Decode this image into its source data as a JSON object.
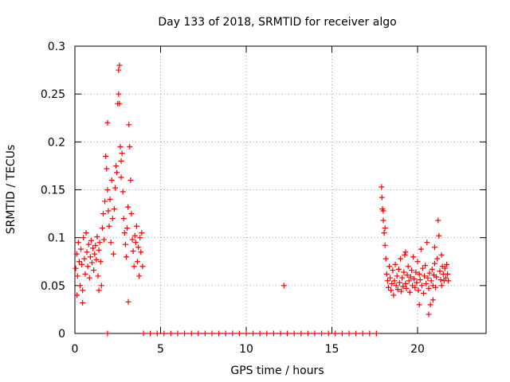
{
  "chart_data": {
    "type": "scatter",
    "title": "Day 133 of 2018, SRMTID for receiver algo",
    "xlabel": "GPS time / hours",
    "ylabel": "SRMTID / TECUs",
    "xlim": [
      0,
      24
    ],
    "ylim": [
      0,
      0.3
    ],
    "grid": true,
    "marker": "+",
    "color": "#ff0000",
    "x_ticks": [
      0,
      5,
      10,
      15,
      20
    ],
    "x_tick_labels": [
      "0",
      "5",
      "10",
      "15",
      "20"
    ],
    "y_ticks": [
      0,
      0.05,
      0.1,
      0.15,
      0.2,
      0.25,
      0.3
    ],
    "y_tick_labels": [
      "0",
      "0.05",
      "0.1",
      "0.15",
      "0.2",
      "0.25",
      "0.3"
    ],
    "series": [
      {
        "name": "SRMTID",
        "points": [
          [
            0.05,
            0.068
          ],
          [
            0.1,
            0.083
          ],
          [
            0.15,
            0.06
          ],
          [
            0.2,
            0.095
          ],
          [
            0.25,
            0.075
          ],
          [
            0.3,
            0.05
          ],
          [
            0.35,
            0.088
          ],
          [
            0.4,
            0.072
          ],
          [
            0.45,
            0.045
          ],
          [
            0.5,
            0.1
          ],
          [
            0.55,
            0.078
          ],
          [
            0.6,
            0.062
          ],
          [
            0.65,
            0.105
          ],
          [
            0.7,
            0.085
          ],
          [
            0.75,
            0.07
          ],
          [
            0.8,
            0.093
          ],
          [
            0.85,
            0.058
          ],
          [
            0.9,
            0.08
          ],
          [
            0.95,
            0.097
          ],
          [
            1.0,
            0.074
          ],
          [
            1.05,
            0.089
          ],
          [
            1.1,
            0.066
          ],
          [
            1.15,
            0.083
          ],
          [
            1.2,
            0.092
          ],
          [
            1.25,
            0.077
          ],
          [
            1.3,
            0.101
          ],
          [
            1.35,
            0.06
          ],
          [
            1.4,
            0.087
          ],
          [
            1.45,
            0.095
          ],
          [
            1.5,
            0.075
          ],
          [
            1.55,
            0.05
          ],
          [
            1.6,
            0.11
          ],
          [
            1.65,
            0.125
          ],
          [
            1.7,
            0.098
          ],
          [
            1.75,
            0.138
          ],
          [
            1.8,
            0.185
          ],
          [
            1.85,
            0.172
          ],
          [
            1.9,
            0.15
          ],
          [
            1.95,
            0.128
          ],
          [
            2.0,
            0.112
          ],
          [
            2.05,
            0.14
          ],
          [
            2.1,
            0.095
          ],
          [
            2.15,
            0.16
          ],
          [
            2.2,
            0.12
          ],
          [
            2.25,
            0.083
          ],
          [
            2.3,
            0.13
          ],
          [
            2.35,
            0.152
          ],
          [
            2.4,
            0.175
          ],
          [
            2.45,
            0.168
          ],
          [
            2.5,
            0.24
          ],
          [
            2.55,
            0.275
          ],
          [
            2.6,
            0.28
          ],
          [
            2.65,
            0.195
          ],
          [
            2.7,
            0.163
          ],
          [
            2.75,
            0.188
          ],
          [
            2.8,
            0.148
          ],
          [
            2.85,
            0.12
          ],
          [
            2.9,
            0.105
          ],
          [
            2.95,
            0.093
          ],
          [
            3.0,
            0.08
          ],
          [
            3.05,
            0.11
          ],
          [
            3.1,
            0.132
          ],
          [
            3.15,
            0.218
          ],
          [
            3.2,
            0.195
          ],
          [
            3.25,
            0.16
          ],
          [
            3.3,
            0.125
          ],
          [
            3.35,
            0.098
          ],
          [
            3.4,
            0.086
          ],
          [
            3.45,
            0.07
          ],
          [
            3.5,
            0.102
          ],
          [
            3.55,
            0.095
          ],
          [
            3.6,
            0.112
          ],
          [
            3.65,
            0.075
          ],
          [
            3.7,
            0.09
          ],
          [
            3.75,
            0.06
          ],
          [
            3.8,
            0.1
          ],
          [
            3.85,
            0.085
          ],
          [
            3.9,
            0.105
          ],
          [
            3.95,
            0.07
          ],
          [
            3.12,
            0.033
          ],
          [
            1.9,
            0.22
          ],
          [
            2.55,
            0.25
          ],
          [
            2.6,
            0.24
          ],
          [
            2.7,
            0.18
          ],
          [
            0.45,
            0.032
          ],
          [
            1.4,
            0.045
          ],
          [
            0.12,
            0.04
          ],
          [
            1.9,
            0.0
          ],
          [
            4.0,
            0.0
          ],
          [
            4.4,
            0.0
          ],
          [
            4.8,
            0.0
          ],
          [
            5.2,
            0.0
          ],
          [
            5.6,
            0.0
          ],
          [
            6.0,
            0.0
          ],
          [
            6.4,
            0.0
          ],
          [
            6.8,
            0.0
          ],
          [
            7.2,
            0.0
          ],
          [
            7.6,
            0.0
          ],
          [
            8.0,
            0.0
          ],
          [
            8.4,
            0.0
          ],
          [
            8.8,
            0.0
          ],
          [
            9.2,
            0.0
          ],
          [
            9.6,
            0.0
          ],
          [
            10.0,
            0.0
          ],
          [
            10.4,
            0.0
          ],
          [
            10.8,
            0.0
          ],
          [
            11.2,
            0.0
          ],
          [
            11.6,
            0.0
          ],
          [
            12.0,
            0.0
          ],
          [
            12.4,
            0.0
          ],
          [
            12.8,
            0.0
          ],
          [
            13.2,
            0.0
          ],
          [
            13.6,
            0.0
          ],
          [
            14.0,
            0.0
          ],
          [
            14.4,
            0.0
          ],
          [
            14.8,
            0.0
          ],
          [
            15.2,
            0.0
          ],
          [
            15.6,
            0.0
          ],
          [
            16.0,
            0.0
          ],
          [
            16.4,
            0.0
          ],
          [
            16.8,
            0.0
          ],
          [
            17.2,
            0.0
          ],
          [
            17.6,
            0.0
          ],
          [
            12.2,
            0.05
          ],
          [
            17.9,
            0.153
          ],
          [
            17.92,
            0.142
          ],
          [
            17.95,
            0.13
          ],
          [
            18.0,
            0.118
          ],
          [
            18.05,
            0.105
          ],
          [
            18.1,
            0.092
          ],
          [
            18.15,
            0.078
          ],
          [
            18.2,
            0.062
          ],
          [
            18.25,
            0.055
          ],
          [
            18.3,
            0.048
          ],
          [
            18.35,
            0.07
          ],
          [
            18.4,
            0.058
          ],
          [
            18.45,
            0.045
          ],
          [
            18.5,
            0.052
          ],
          [
            18.55,
            0.066
          ],
          [
            18.6,
            0.04
          ],
          [
            18.65,
            0.055
          ],
          [
            18.7,
            0.072
          ],
          [
            18.75,
            0.05
          ],
          [
            18.8,
            0.06
          ],
          [
            18.85,
            0.046
          ],
          [
            18.9,
            0.067
          ],
          [
            18.95,
            0.053
          ],
          [
            19.0,
            0.078
          ],
          [
            19.05,
            0.044
          ],
          [
            19.1,
            0.058
          ],
          [
            19.15,
            0.049
          ],
          [
            19.2,
            0.064
          ],
          [
            19.25,
            0.082
          ],
          [
            19.3,
            0.052
          ],
          [
            19.35,
            0.047
          ],
          [
            19.4,
            0.061
          ],
          [
            19.45,
            0.07
          ],
          [
            19.5,
            0.055
          ],
          [
            19.55,
            0.043
          ],
          [
            19.6,
            0.059
          ],
          [
            19.65,
            0.066
          ],
          [
            19.7,
            0.05
          ],
          [
            19.75,
            0.08
          ],
          [
            19.8,
            0.057
          ],
          [
            19.85,
            0.048
          ],
          [
            19.9,
            0.064
          ],
          [
            19.95,
            0.053
          ],
          [
            20.0,
            0.075
          ],
          [
            20.05,
            0.045
          ],
          [
            20.1,
            0.062
          ],
          [
            20.15,
            0.056
          ],
          [
            20.2,
            0.088
          ],
          [
            20.25,
            0.05
          ],
          [
            20.3,
            0.068
          ],
          [
            20.35,
            0.042
          ],
          [
            20.4,
            0.06
          ],
          [
            20.45,
            0.071
          ],
          [
            20.5,
            0.052
          ],
          [
            20.55,
            0.095
          ],
          [
            20.6,
            0.058
          ],
          [
            20.65,
            0.047
          ],
          [
            20.7,
            0.063
          ],
          [
            20.75,
            0.03
          ],
          [
            20.8,
            0.055
          ],
          [
            20.85,
            0.067
          ],
          [
            20.9,
            0.05
          ],
          [
            20.95,
            0.061
          ],
          [
            21.0,
            0.073
          ],
          [
            21.05,
            0.048
          ],
          [
            21.1,
            0.059
          ],
          [
            21.15,
            0.078
          ],
          [
            21.2,
            0.118
          ],
          [
            21.25,
            0.102
          ],
          [
            21.3,
            0.065
          ],
          [
            21.35,
            0.056
          ],
          [
            21.4,
            0.05
          ],
          [
            21.45,
            0.07
          ],
          [
            21.5,
            0.062
          ],
          [
            21.55,
            0.055
          ],
          [
            21.6,
            0.068
          ],
          [
            21.65,
            0.058
          ],
          [
            21.7,
            0.072
          ],
          [
            21.75,
            0.062
          ],
          [
            21.8,
            0.055
          ],
          [
            18.0,
            0.128
          ],
          [
            18.1,
            0.11
          ],
          [
            19.3,
            0.085
          ],
          [
            20.1,
            0.03
          ],
          [
            20.65,
            0.02
          ],
          [
            21.0,
            0.09
          ],
          [
            21.4,
            0.082
          ],
          [
            20.9,
            0.035
          ]
        ]
      }
    ]
  }
}
